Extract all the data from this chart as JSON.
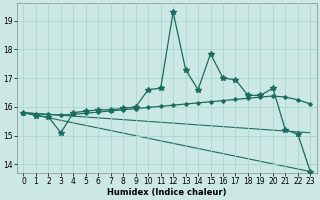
{
  "xlabel": "Humidex (Indice chaleur)",
  "background_color": "#cce8e4",
  "grid_color": "#a8d8d0",
  "line_color": "#1a6b60",
  "xlim": [
    -0.5,
    23.5
  ],
  "ylim": [
    13.7,
    19.6
  ],
  "x_main": [
    0,
    1,
    2,
    3,
    4,
    5,
    6,
    7,
    8,
    9,
    10,
    11,
    12,
    13,
    14,
    15,
    16,
    17,
    18,
    19,
    20,
    21,
    22,
    23
  ],
  "y_main": [
    15.8,
    15.7,
    15.65,
    15.1,
    15.8,
    15.85,
    15.9,
    15.9,
    15.95,
    16.0,
    16.6,
    16.65,
    19.3,
    17.3,
    16.6,
    17.85,
    17.0,
    16.95,
    16.4,
    16.4,
    16.65,
    15.2,
    15.05,
    13.75
  ],
  "x_smooth": [
    0,
    1,
    2,
    3,
    4,
    5,
    6,
    7,
    8,
    9,
    10,
    11,
    12,
    13,
    14,
    15,
    16,
    17,
    18,
    19,
    20,
    21,
    22,
    23
  ],
  "y_smooth": [
    15.8,
    15.76,
    15.74,
    15.72,
    15.74,
    15.78,
    15.82,
    15.86,
    15.9,
    15.94,
    15.98,
    16.02,
    16.06,
    16.1,
    16.14,
    16.18,
    16.22,
    16.26,
    16.3,
    16.34,
    16.38,
    16.34,
    16.25,
    16.1
  ],
  "upper_line": [
    [
      0,
      23
    ],
    [
      15.8,
      15.1
    ]
  ],
  "lower_line": [
    [
      0,
      23
    ],
    [
      15.8,
      13.75
    ]
  ],
  "yticks": [
    14,
    15,
    16,
    17,
    18,
    19
  ],
  "xticks": [
    0,
    1,
    2,
    3,
    4,
    5,
    6,
    7,
    8,
    9,
    10,
    11,
    12,
    13,
    14,
    15,
    16,
    17,
    18,
    19,
    20,
    21,
    22,
    23
  ]
}
